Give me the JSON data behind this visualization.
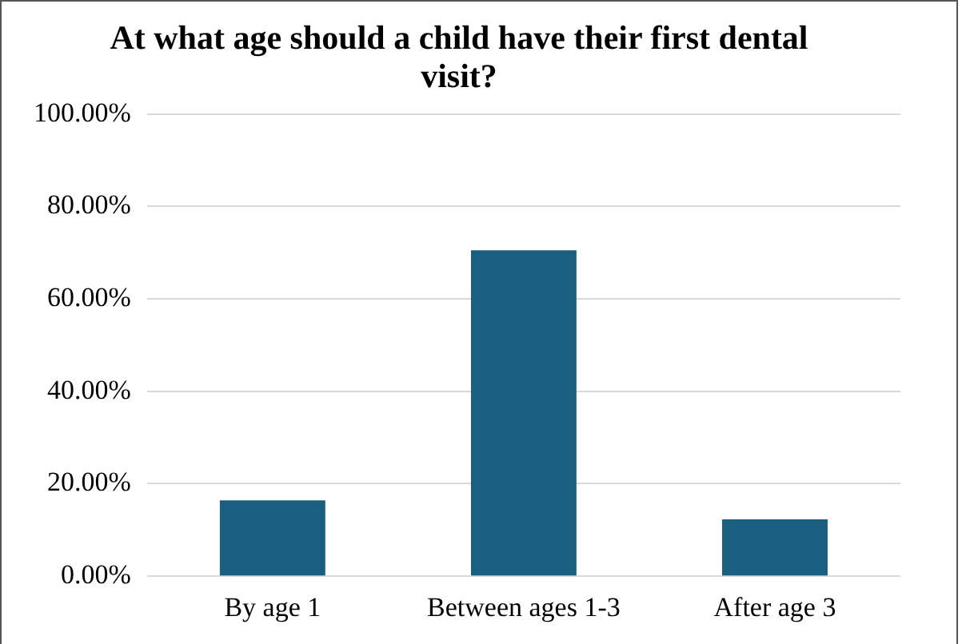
{
  "chart_data": {
    "type": "bar",
    "title": "At what age should a child have their first dental visit?",
    "categories": [
      "By age 1",
      "Between ages 1-3",
      "After age 3"
    ],
    "values": [
      16.4,
      70.5,
      12.3
    ],
    "color": "#1a5e80",
    "ylim": [
      0,
      100
    ],
    "yticks": [
      {
        "value": 0,
        "label": "0.00%"
      },
      {
        "value": 20,
        "label": "20.00%"
      },
      {
        "value": 40,
        "label": "40.00%"
      },
      {
        "value": 60,
        "label": "60.00%"
      },
      {
        "value": 80,
        "label": "80.00%"
      },
      {
        "value": 100,
        "label": "100.00%"
      }
    ],
    "grid": "y",
    "legend": false
  }
}
